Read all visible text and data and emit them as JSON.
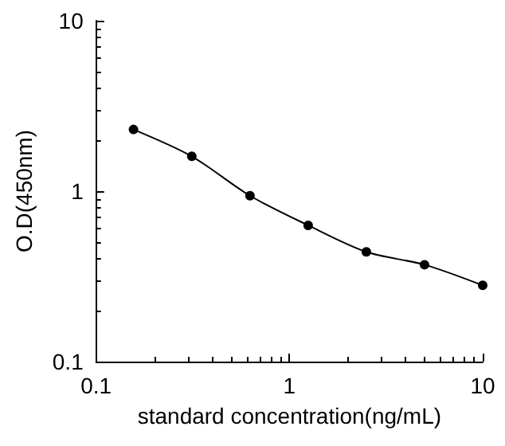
{
  "chart_data": {
    "type": "line",
    "xlabel": "standard concentration(ng/mL)",
    "ylabel": "O.D(450nm)",
    "log": "xy",
    "x": [
      0.156,
      0.3125,
      0.625,
      1.25,
      2.5,
      5,
      10
    ],
    "values": [
      2.3,
      1.6,
      0.94,
      0.63,
      0.44,
      0.37,
      0.28
    ],
    "color": "#000000",
    "marker": "circle",
    "line_style": "solid",
    "grid": false,
    "xlim": [
      0.1,
      10
    ],
    "xticks": [
      0.1,
      1,
      10
    ],
    "ylim": [
      0.1,
      10
    ],
    "yticks": [
      0.1,
      1,
      10
    ]
  }
}
